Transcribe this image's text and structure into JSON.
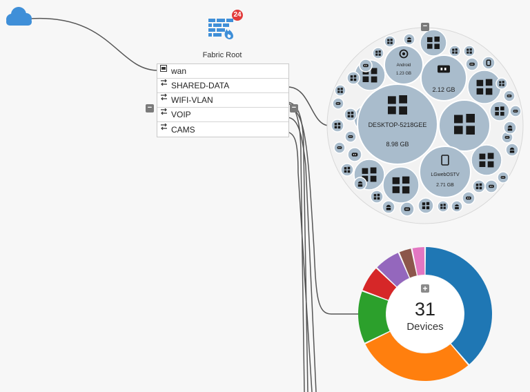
{
  "topology": {
    "root_title": "Fabric Root",
    "alert_badge": "24",
    "interfaces": [
      {
        "label": "wan",
        "icon": "ethernet-port-icon"
      },
      {
        "label": "SHARED-DATA",
        "icon": "network-switch-icon"
      },
      {
        "label": "WIFI-VLAN",
        "icon": "network-switch-icon"
      },
      {
        "label": "VOIP",
        "icon": "network-switch-icon"
      },
      {
        "label": "CAMS",
        "icon": "network-switch-icon"
      }
    ],
    "collapse_symbol": "−",
    "expand_symbol": "+"
  },
  "bubble_cluster": {
    "labeled_devices": [
      {
        "name": "DESKTOP-5218GEE",
        "usage": "8.98 GB",
        "icon": "windows-icon"
      },
      {
        "name": "",
        "usage": "2.12 GB",
        "icon": "media-player-icon"
      },
      {
        "name": "LGwebOSTV",
        "usage": "2.71 GB",
        "icon": "tablet-icon"
      },
      {
        "name": "Android",
        "usage": "1.23 GB",
        "icon": "chrome-icon"
      }
    ]
  },
  "device_summary": {
    "count": "31",
    "label": "Devices"
  },
  "chart_data": {
    "type": "pie",
    "values": [
      12,
      9,
      4,
      2,
      2,
      1,
      1
    ],
    "colors": [
      "#1f77b4",
      "#ff7f0e",
      "#2ca02c",
      "#d62728",
      "#9467bd",
      "#8c564b",
      "#e377c2"
    ],
    "total": 31
  },
  "colors": {
    "accent": "#3f8fd8",
    "bubble": "#a9bccc",
    "bubble_stroke": "#ffffff",
    "cluster_bg": "#f2f2f2",
    "link": "#555555",
    "badge": "#e23b3b"
  }
}
